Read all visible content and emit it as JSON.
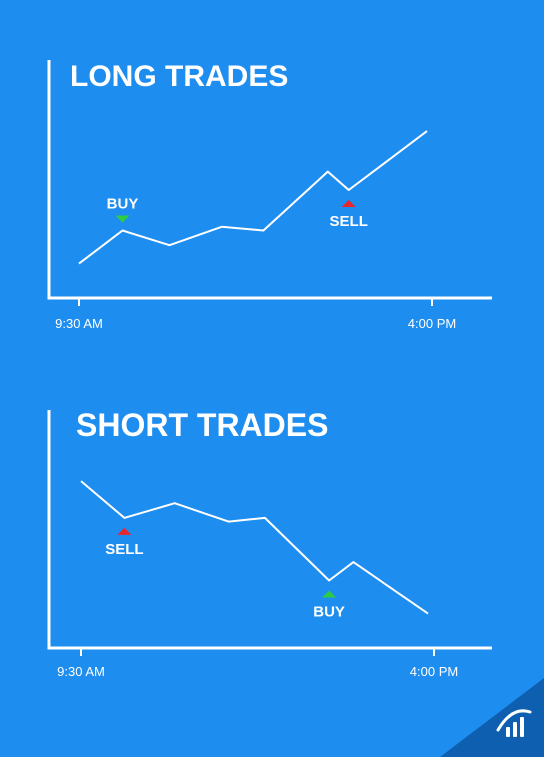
{
  "colors": {
    "background": "#1e8df0",
    "buy": "#2ecc40",
    "sell": "#e8262b",
    "corner": "#0f5fb0"
  },
  "chart_data": [
    {
      "type": "line",
      "title": "LONG TRADES",
      "x_ticks": [
        "9:30 AM",
        "4:00 PM"
      ],
      "series": [
        {
          "values": [
            0.1,
            0.28,
            0.2,
            0.3,
            0.28,
            0.6,
            0.5,
            0.82
          ]
        }
      ],
      "markers": [
        {
          "label": "BUY",
          "kind": "buy",
          "index": 1,
          "direction": "down",
          "placement": "above"
        },
        {
          "label": "SELL",
          "kind": "sell",
          "index": 6,
          "direction": "up",
          "placement": "below"
        }
      ]
    },
    {
      "type": "line",
      "title": "SHORT TRADES",
      "x_ticks": [
        "9:30 AM",
        "4:00 PM"
      ],
      "series": [
        {
          "values": [
            0.82,
            0.62,
            0.7,
            0.6,
            0.62,
            0.28,
            0.38,
            0.1
          ]
        }
      ],
      "markers": [
        {
          "label": "SELL",
          "kind": "sell",
          "index": 1,
          "direction": "up",
          "placement": "below"
        },
        {
          "label": "BUY",
          "kind": "buy",
          "index": 5,
          "direction": "up",
          "placement": "below"
        }
      ]
    }
  ],
  "logo_icon": "bar-chart-logo-icon"
}
